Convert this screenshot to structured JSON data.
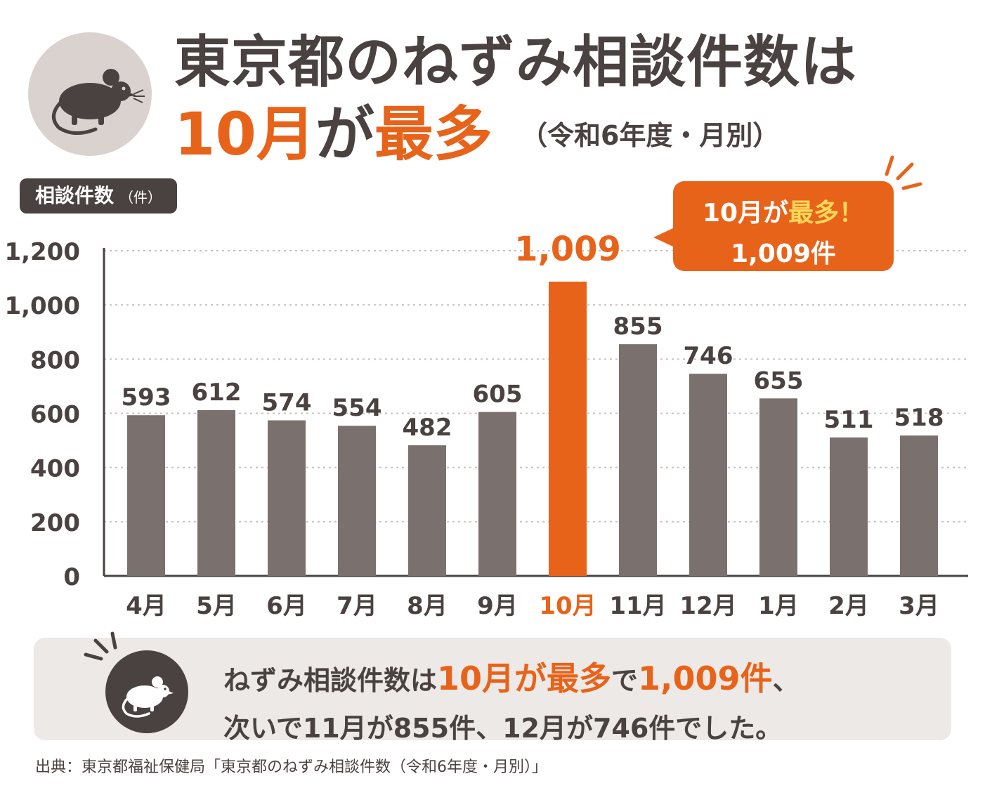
{
  "title": {
    "line1": "東京都のねずみ相談件数は",
    "line2_part1": "10月",
    "line2_part2": "が",
    "line2_part3": "最多",
    "subtitle": "（令和6年度・月別）"
  },
  "unit_label": {
    "main": "相談件数",
    "unit": "（件）"
  },
  "callout": {
    "line1_a": "10月が",
    "line1_b": "最多！",
    "line2": "1,009件"
  },
  "chart_data": {
    "type": "bar",
    "categories": [
      "4月",
      "5月",
      "6月",
      "7月",
      "8月",
      "9月",
      "10月",
      "11月",
      "12月",
      "1月",
      "2月",
      "3月"
    ],
    "values": [
      593,
      612,
      574,
      554,
      482,
      605,
      1009,
      855,
      746,
      655,
      511,
      518
    ],
    "value_labels": [
      "593",
      "612",
      "574",
      "554",
      "482",
      "605",
      "1,009",
      "855",
      "746",
      "655",
      "511",
      "518"
    ],
    "highlight_index": 6,
    "ylim": [
      0,
      1200
    ],
    "yticks": [
      0,
      200,
      400,
      600,
      800,
      1000,
      1200
    ],
    "ytick_labels": [
      "0",
      "200",
      "400",
      "600",
      "800",
      "1,000",
      "1,200"
    ],
    "grid": true,
    "colors": {
      "bar": "#7a706d",
      "highlight": "#e8631a",
      "axis": "#4a4240",
      "grid": "#c9c3c0"
    }
  },
  "summary": {
    "a": "ねずみ相談件数は",
    "b": "10月が最多",
    "c": "で",
    "d": "1,009件",
    "e": "、",
    "row2": "次いで11月が855件、12月が746件でした。"
  },
  "source": "出典：東京都福祉保健局「東京都のねずみ相談件数（令和6年度・月別）」",
  "colors": {
    "accent": "#e8631a",
    "dark": "#4a4240",
    "badge_bg": "#d9d2ce",
    "panel_bg": "#ede9e6"
  }
}
